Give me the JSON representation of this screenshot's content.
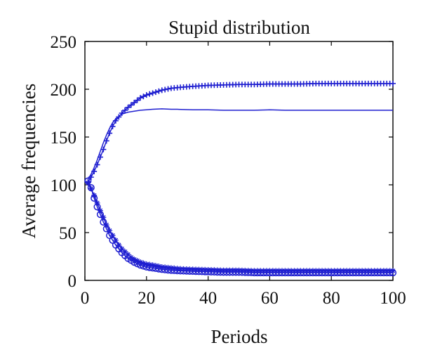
{
  "chart_data": {
    "type": "line",
    "title": "Stupid distribution",
    "xlabel": "Periods",
    "ylabel": "Average frequencies",
    "xlim": [
      0,
      100
    ],
    "ylim": [
      0,
      250
    ],
    "xticks": [
      0,
      20,
      40,
      60,
      80,
      100
    ],
    "yticks": [
      0,
      50,
      100,
      150,
      200,
      250
    ],
    "grid": false,
    "series_color": "#1f1fd0",
    "series": [
      {
        "marker": "plus",
        "x": [
          1,
          2,
          3,
          4,
          5,
          6,
          7,
          8,
          9,
          10,
          12,
          14,
          16,
          18,
          20,
          22,
          25,
          28,
          31,
          35,
          40,
          45,
          50,
          55,
          60,
          65,
          70,
          75,
          80,
          85,
          90,
          95,
          100
        ],
        "y": [
          103,
          108,
          114,
          121,
          129,
          137,
          146,
          154,
          161,
          167,
          175,
          181,
          186,
          191,
          194,
          196,
          199,
          201,
          202,
          203,
          204,
          204.5,
          205,
          205,
          205.5,
          205.5,
          205.5,
          206,
          206,
          206,
          206,
          206,
          206
        ]
      },
      {
        "marker": "none",
        "x": [
          1,
          2,
          3,
          4,
          5,
          6,
          7,
          8,
          9,
          10,
          12,
          14,
          16,
          18,
          20,
          22,
          25,
          28,
          30,
          35,
          40,
          45,
          50,
          55,
          60,
          65,
          70,
          75,
          80,
          85,
          90,
          95,
          100
        ],
        "y": [
          106,
          111,
          118,
          126,
          135,
          144,
          152,
          159,
          165,
          169,
          174,
          176,
          177,
          178,
          178.5,
          179,
          179.5,
          179,
          179,
          178.5,
          178.5,
          178,
          178,
          178,
          178.5,
          178,
          178,
          178,
          178,
          178,
          178,
          178,
          178
        ]
      },
      {
        "marker": "star",
        "x": [
          1,
          2,
          3,
          4,
          5,
          6,
          7,
          8,
          9,
          10,
          11,
          12,
          13,
          14,
          15,
          16,
          18,
          20,
          22,
          25,
          28,
          31,
          35,
          40,
          45,
          50,
          55,
          60,
          65,
          70,
          75,
          80,
          85,
          90,
          95,
          100
        ],
        "y": [
          102,
          96,
          89,
          81,
          73,
          66,
          58,
          52,
          47,
          42,
          37,
          33,
          30,
          27,
          24,
          22,
          19,
          17,
          16,
          14,
          13,
          12,
          11.5,
          11,
          10.5,
          10.5,
          10,
          10,
          10,
          10,
          10,
          10,
          10,
          10,
          10,
          10
        ]
      },
      {
        "marker": "circle",
        "x": [
          1,
          2,
          3,
          4,
          5,
          6,
          7,
          8,
          9,
          10,
          11,
          12,
          13,
          14,
          15,
          16,
          18,
          20,
          22,
          25,
          28,
          31,
          35,
          40,
          45,
          50,
          55,
          60,
          65,
          70,
          75,
          80,
          85,
          90,
          95,
          100
        ],
        "y": [
          104,
          97,
          86,
          77,
          69,
          61,
          54,
          47,
          42,
          37,
          33,
          29,
          26,
          23,
          21,
          19,
          16,
          14,
          13,
          11.5,
          10.5,
          10,
          9.5,
          9,
          8.5,
          8.5,
          8,
          8,
          8,
          8,
          8,
          8,
          8,
          8,
          8,
          8
        ]
      }
    ]
  }
}
